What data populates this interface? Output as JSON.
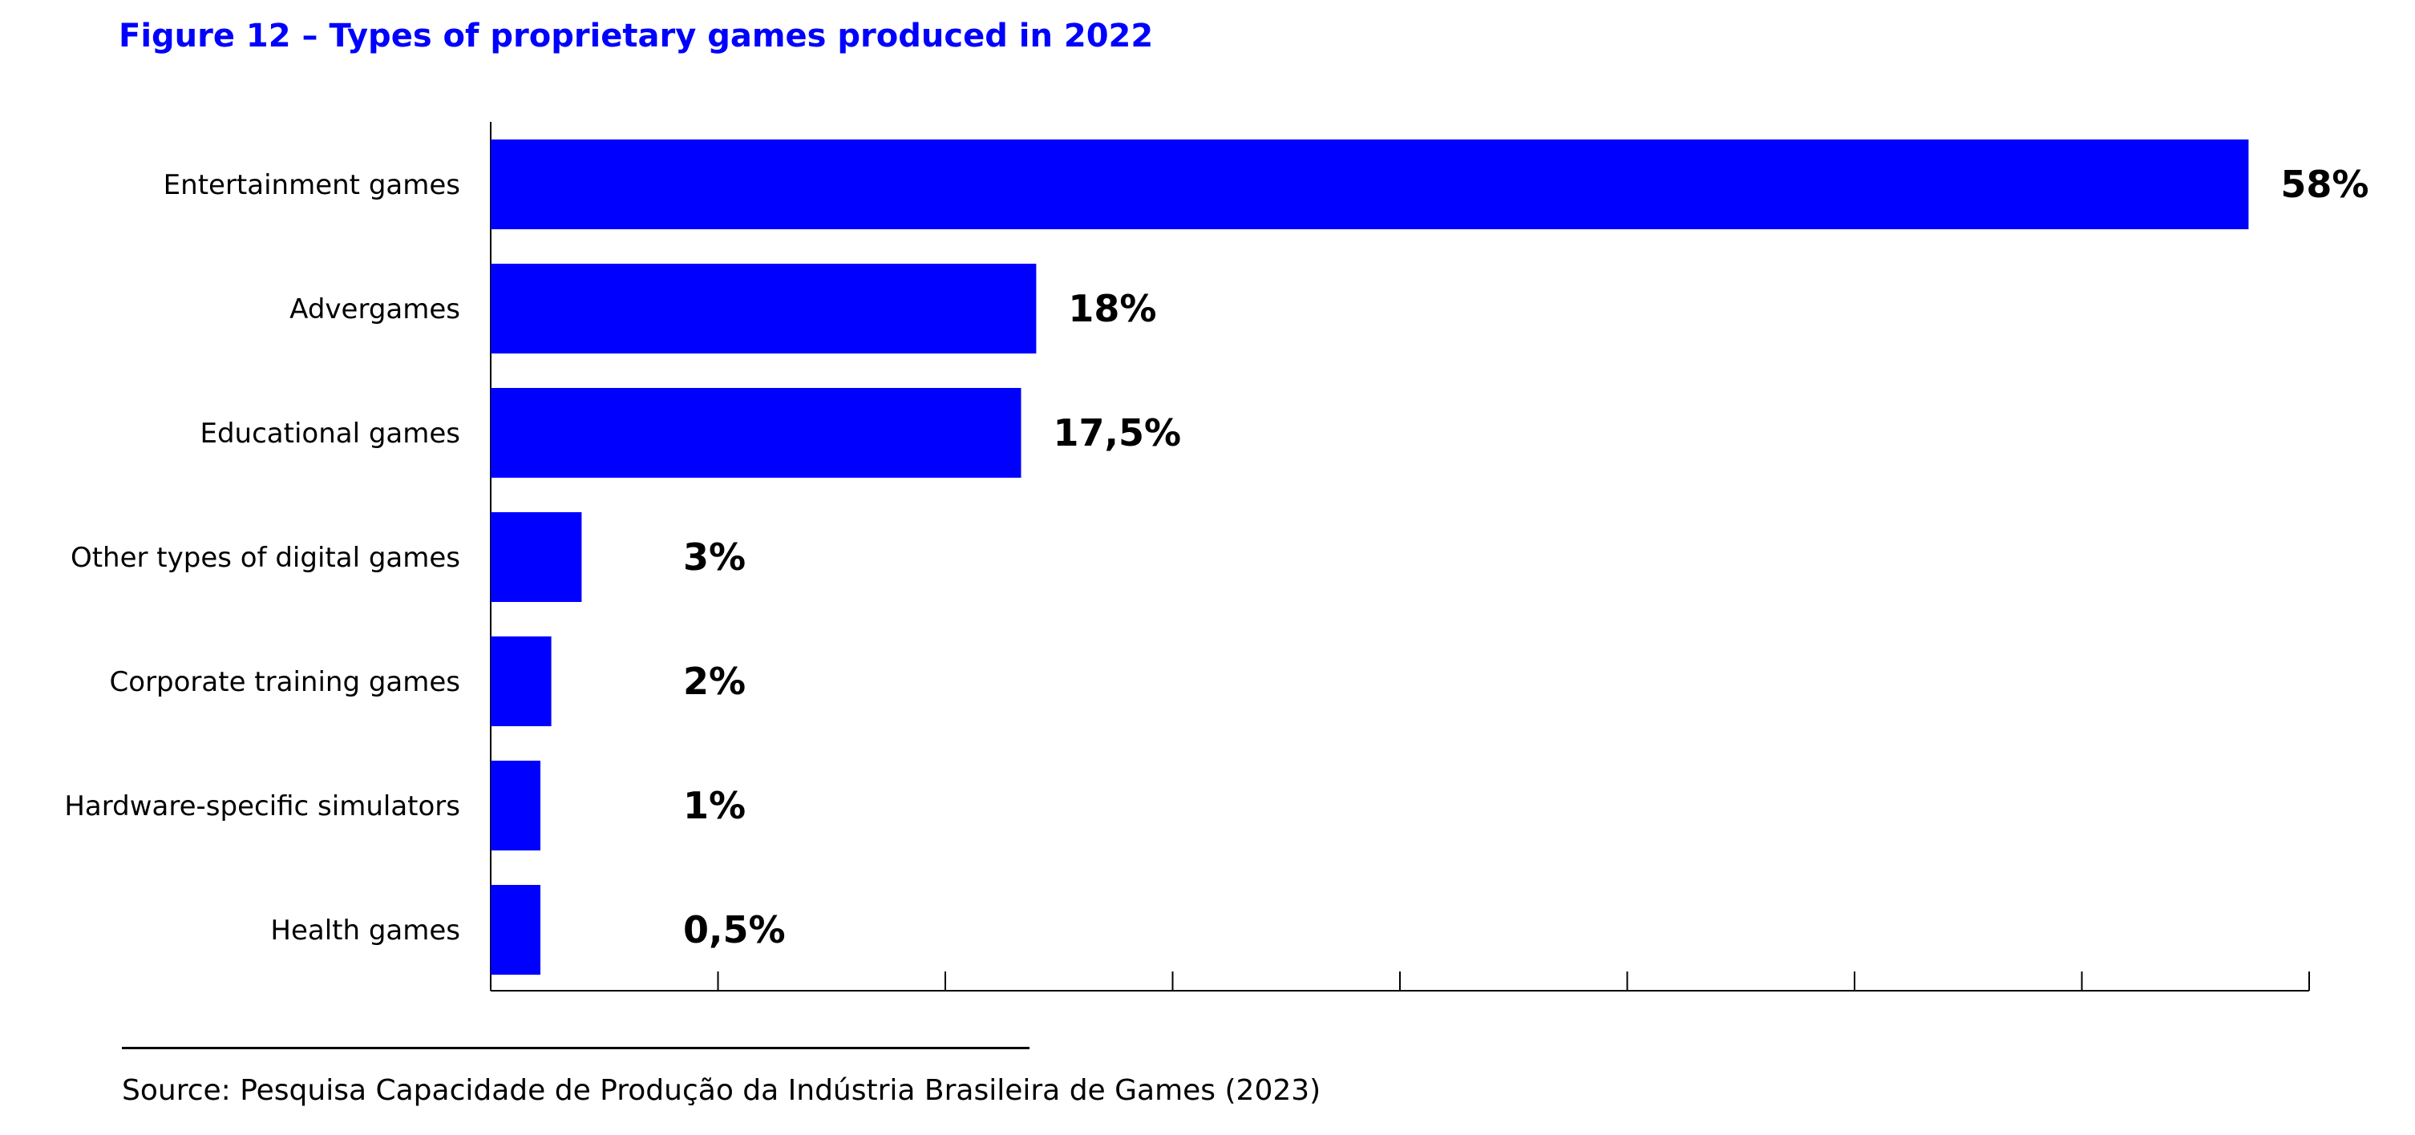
{
  "figure_title": "Figure 12 – Types of proprietary games produced in 2022",
  "source": "Source: Pesquisa Capacidade de Produção da Indústria Brasileira de Games (2023)",
  "colors": {
    "bar": "#0000ff",
    "title": "#0000ff",
    "axis": "#000000"
  },
  "chart_data": {
    "type": "bar",
    "orientation": "horizontal",
    "categories": [
      "Entertainment games",
      "Advergames",
      "Educational games",
      "Other types of digital games",
      "Corporate training games",
      "Hardware-specific simulators",
      "Health games"
    ],
    "values": [
      58,
      18,
      17.5,
      3,
      2,
      1,
      0.5
    ],
    "value_labels": [
      "58%",
      "18%",
      "17,5%",
      "3%",
      "2%",
      "1%",
      "0,5%"
    ],
    "title": "",
    "xlabel": "",
    "ylabel": "",
    "xlim": [
      0,
      60
    ],
    "x_ticks_count": 8,
    "grid": false,
    "legend": "none"
  }
}
